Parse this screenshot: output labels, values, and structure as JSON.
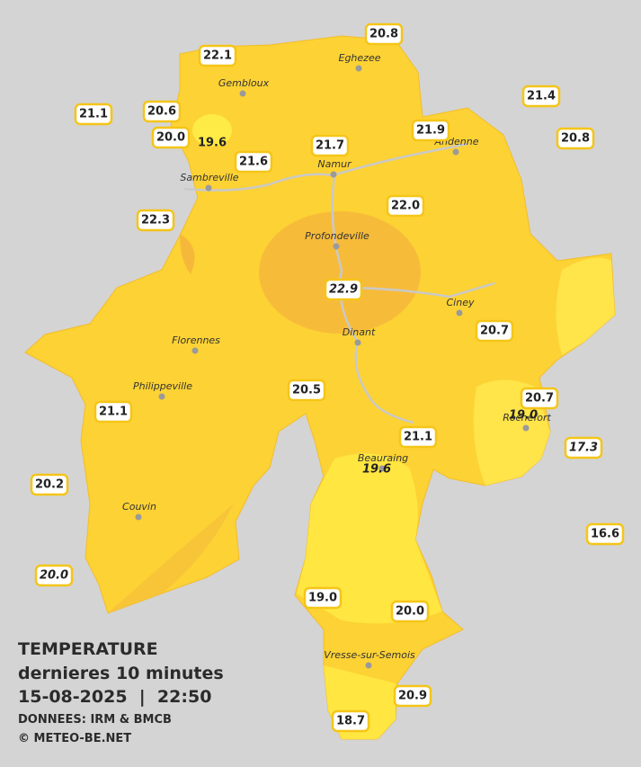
{
  "places": [
    "Eghezee",
    "Gembloux",
    "Andenne",
    "Namur",
    "Sambreville",
    "Profondeville",
    "Ciney",
    "Dinant",
    "Florennes",
    "Philippeville",
    "Beauraing",
    "Rochefort",
    "Couvin",
    "Vresse-sur-Semois"
  ],
  "stations": [
    "22.1",
    "20.8",
    "21.1",
    "20.6",
    "20.0",
    "19.6",
    "21.6",
    "21.7",
    "21.9",
    "21.4",
    "20.8",
    "22.3",
    "22.0",
    "22.9",
    "20.7",
    "20.5",
    "20.7",
    "19.0",
    "21.1",
    "21.1",
    "19.6",
    "17.3",
    "20.2",
    "16.6",
    "20.0",
    "19.0",
    "20.0",
    "20.9",
    "18.7"
  ],
  "legend": {
    "title": "TEMPERATURE",
    "subtitle": "dernieres 10 minutes",
    "datetime": "15-08-2025  |  22:50",
    "source": "DONNEES: IRM & BMCB",
    "copyright": "© METEO-BE.NET"
  }
}
